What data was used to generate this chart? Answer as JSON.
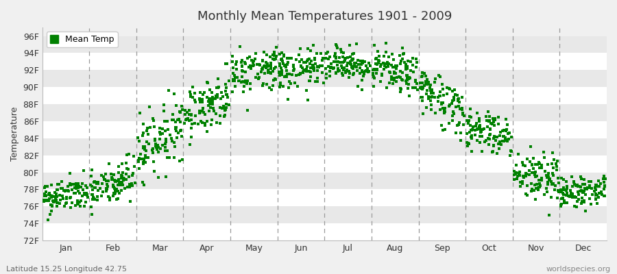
{
  "title": "Monthly Mean Temperatures 1901 - 2009",
  "ylabel": "Temperature",
  "ylim": [
    72,
    97
  ],
  "yticks": [
    72,
    74,
    76,
    78,
    80,
    82,
    84,
    86,
    88,
    90,
    92,
    94,
    96
  ],
  "ytick_labels": [
    "72F",
    "74F",
    "76F",
    "78F",
    "80F",
    "82F",
    "84F",
    "86F",
    "88F",
    "90F",
    "92F",
    "94F",
    "96F"
  ],
  "months": [
    "Jan",
    "Feb",
    "Mar",
    "Apr",
    "May",
    "Jun",
    "Jul",
    "Aug",
    "Sep",
    "Oct",
    "Nov",
    "Dec"
  ],
  "month_means": [
    77.0,
    77.5,
    82.5,
    87.0,
    91.5,
    92.0,
    93.0,
    92.5,
    90.0,
    85.5,
    80.0,
    77.5
  ],
  "month_stds": [
    1.0,
    1.3,
    1.8,
    1.5,
    1.3,
    1.2,
    1.0,
    1.2,
    1.5,
    1.3,
    1.5,
    0.9
  ],
  "month_trends": [
    0.5,
    2.0,
    3.0,
    2.0,
    1.0,
    0.0,
    -0.5,
    -1.5,
    -3.0,
    -1.5,
    -1.0,
    0.5
  ],
  "n_years": 109,
  "dot_color": "#008000",
  "dot_size": 5,
  "bg_color": "#F0F0F0",
  "band_light": "#FFFFFF",
  "band_dark": "#E8E8E8",
  "dashed_line_color": "#999999",
  "legend_label": "Mean Temp",
  "bottom_left_text": "Latitude 15.25 Longitude 42.75",
  "bottom_right_text": "worldspecies.org",
  "font_color": "#333333",
  "font_size_axis": 9,
  "font_size_tick": 9,
  "font_size_title": 13,
  "font_size_bottom": 8
}
